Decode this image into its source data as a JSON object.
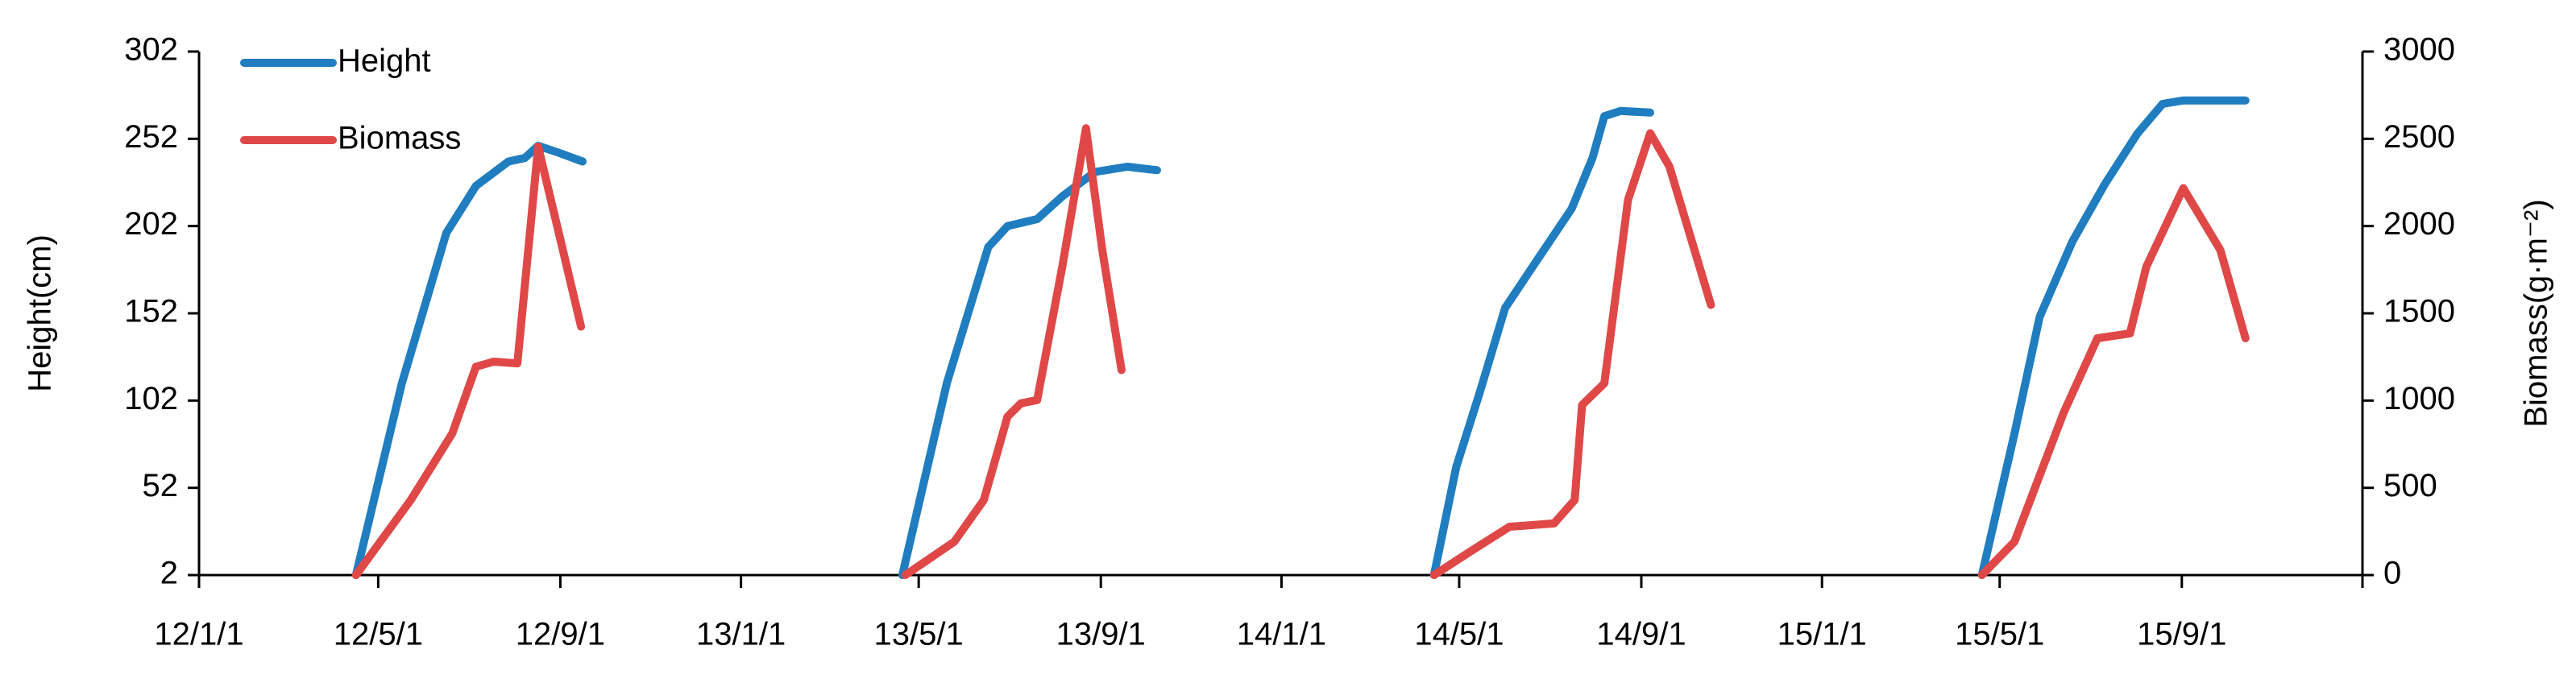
{
  "chart_data": {
    "type": "line",
    "xlim": [
      "12/1/1",
      "16/1/1"
    ],
    "xticks": [
      "12/1/1",
      "12/5/1",
      "12/9/1",
      "13/1/1",
      "13/5/1",
      "13/9/1",
      "14/1/1",
      "14/5/1",
      "14/9/1",
      "15/1/1",
      "15/5/1",
      "15/9/1"
    ],
    "ylabel": "Height(cm)",
    "ylim": [
      2,
      302
    ],
    "yticks": [
      2,
      52,
      102,
      152,
      202,
      252,
      302
    ],
    "y2label": "Biomass(g·m⁻²)",
    "y2lim": [
      0,
      3000
    ],
    "y2ticks": [
      0,
      500,
      1000,
      1500,
      2000,
      2500,
      3000
    ],
    "legend": "top-left",
    "series": [
      {
        "name": "Height",
        "color": "#1f7dc0",
        "axis": "y",
        "x": [
          "12/4/16",
          "12/5/17",
          "12/6/16",
          "12/7/6",
          "12/7/28",
          "12/8/8",
          "12/8/17",
          "12/8/31",
          "12/9/16",
          null,
          "13/4/20",
          "13/5/20",
          "13/6/17",
          "13/6/30",
          "13/7/20",
          "13/8/6",
          "13/8/28",
          "13/9/19",
          "13/10/9",
          null,
          "14/4/14",
          "14/4/29",
          "14/5/15",
          "14/6/1",
          "14/6/23",
          "14/7/16",
          "14/7/30",
          "14/8/7",
          "14/8/18",
          "14/9/7",
          null,
          "15/4/19",
          "15/5/11",
          "15/5/28",
          "15/6/19",
          "15/7/11",
          "15/8/2",
          "15/8/19",
          "15/9/2",
          "15/10/14"
        ],
        "values": [
          2,
          112,
          198,
          225,
          239,
          241,
          248,
          244,
          239,
          null,
          2,
          112,
          190,
          202,
          206,
          219,
          233,
          236,
          234,
          null,
          2,
          64,
          107,
          155,
          183,
          212,
          241,
          265,
          268,
          267,
          null,
          2,
          83,
          150,
          193,
          226,
          255,
          272,
          274,
          274
        ]
      },
      {
        "name": "Biomass",
        "color": "#e04848",
        "axis": "y2",
        "x": [
          "12/4/16",
          "12/5/23",
          "12/6/20",
          "12/7/6",
          "12/7/18",
          "12/8/3",
          "12/8/17",
          "12/8/31",
          "12/9/15",
          null,
          "13/4/22",
          "13/5/25",
          "13/6/14",
          "13/6/30",
          "13/7/9",
          "13/7/20",
          "13/8/6",
          "13/8/22",
          "13/9/2",
          "13/9/15",
          null,
          "14/4/14",
          "14/5/10",
          "14/6/4",
          "14/7/4",
          "14/7/18",
          "14/7/23",
          "14/8/7",
          "14/8/23",
          "14/9/7",
          "14/9/20",
          "14/10/18",
          null,
          "15/4/19",
          "15/5/11",
          "15/6/13",
          "15/7/6",
          "15/7/28",
          "15/8/8",
          "15/9/2",
          "15/9/27",
          "15/10/14"
        ],
        "values": [
          0,
          430,
          812,
          1194,
          1223,
          1213,
          2455,
          1959,
          1424,
          null,
          0,
          191,
          430,
          908,
          984,
          1003,
          1768,
          2560,
          1863,
          1175,
          null,
          0,
          143,
          277,
          296,
          430,
          975,
          1099,
          2150,
          2532,
          2341,
          1548,
          null,
          0,
          191,
          927,
          1357,
          1385,
          1767,
          2217,
          1863,
          1357
        ]
      }
    ]
  }
}
